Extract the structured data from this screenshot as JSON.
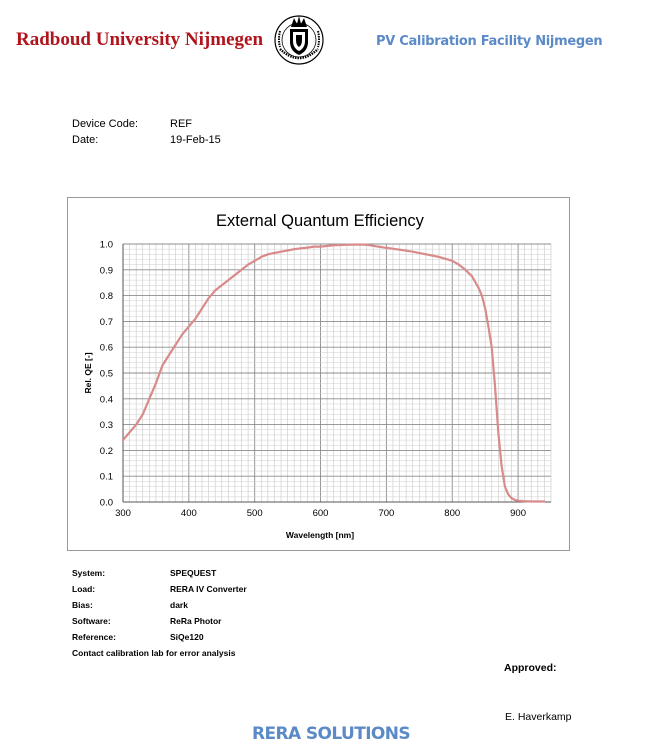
{
  "header": {
    "university": "Radboud University Nijmegen",
    "logo_icon": "crest-logo-icon",
    "facility": "PV Calibration Facility Nijmegen"
  },
  "device": {
    "code_label": "Device Code:",
    "code_value": "REF",
    "date_label": "Date:",
    "date_value": "19-Feb-15"
  },
  "chart_data": {
    "type": "line",
    "title": "External Quantum Efficiency",
    "xlabel": "Wavelength [nm]",
    "ylabel": "Rel. QE [-]",
    "xlim": [
      300,
      950
    ],
    "ylim": [
      0,
      1
    ],
    "xticks": [
      "300",
      "400",
      "500",
      "600",
      "700",
      "800",
      "900"
    ],
    "yticks": [
      "0.0",
      "0.1",
      "0.2",
      "0.3",
      "0.4",
      "0.5",
      "0.6",
      "0.7",
      "0.8",
      "0.9",
      "1.0"
    ],
    "grid": true,
    "line_color": "#d98a8a",
    "series": [
      {
        "x": [
          300,
          310,
          320,
          330,
          340,
          350,
          360,
          370,
          380,
          390,
          400,
          410,
          420,
          430,
          440,
          450,
          460,
          470,
          480,
          490,
          500,
          510,
          520,
          530,
          540,
          550,
          560,
          570,
          580,
          590,
          600,
          620,
          640,
          660,
          670,
          680,
          700,
          720,
          740,
          760,
          780,
          800,
          810,
          820,
          830,
          840,
          845,
          850,
          855,
          860,
          865,
          870,
          875,
          880,
          885,
          890,
          895,
          900,
          910,
          920,
          930,
          940
        ],
        "y": [
          0.24,
          0.27,
          0.3,
          0.34,
          0.4,
          0.46,
          0.53,
          0.57,
          0.61,
          0.65,
          0.68,
          0.71,
          0.75,
          0.79,
          0.82,
          0.84,
          0.86,
          0.88,
          0.9,
          0.92,
          0.935,
          0.95,
          0.96,
          0.965,
          0.97,
          0.975,
          0.98,
          0.983,
          0.986,
          0.99,
          0.99,
          0.995,
          0.997,
          0.998,
          0.997,
          0.993,
          0.985,
          0.978,
          0.97,
          0.96,
          0.95,
          0.935,
          0.92,
          0.9,
          0.875,
          0.83,
          0.8,
          0.75,
          0.68,
          0.6,
          0.45,
          0.27,
          0.14,
          0.06,
          0.03,
          0.015,
          0.008,
          0.005,
          0.003,
          0.002,
          0.002,
          0.002
        ]
      }
    ]
  },
  "info": {
    "rows": [
      {
        "label": "System:",
        "value": "SPEQUEST"
      },
      {
        "label": "Load:",
        "value": "RERA IV Converter"
      },
      {
        "label": "Bias:",
        "value": "dark"
      },
      {
        "label": "Software:",
        "value": "ReRa Photor"
      },
      {
        "label": "Reference:",
        "value": "SiQe120"
      }
    ],
    "contact": "Contact calibration lab for error analysis"
  },
  "approval": {
    "label": "Approved:",
    "signatory": "E. Haverkamp"
  },
  "footer": {
    "brand": "RERA SOLUTIONS"
  }
}
